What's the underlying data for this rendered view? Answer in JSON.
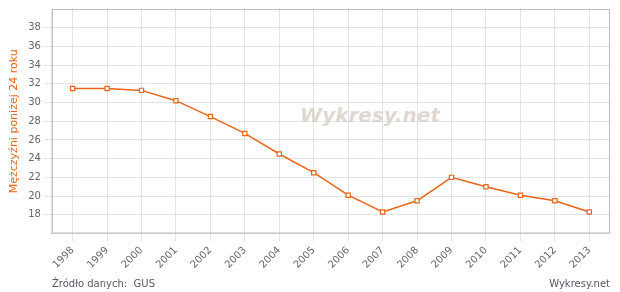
{
  "chart_data": {
    "type": "line",
    "y_label": "Mężczyźni poniżej 24 roku",
    "x": [
      1998,
      1999,
      2000,
      2001,
      2002,
      2003,
      2004,
      2005,
      2006,
      2007,
      2008,
      2009,
      2010,
      2011,
      2012,
      2013
    ],
    "values": [
      31.5,
      31.5,
      31.3,
      30.2,
      28.5,
      26.7,
      24.5,
      22.5,
      20.1,
      18.3,
      19.5,
      22.0,
      21.0,
      20.1,
      19.5,
      18.3
    ],
    "color": "#e8651a",
    "marker": "square",
    "xlim": [
      1997.4,
      2013.6
    ],
    "xticks": [
      1998,
      1999,
      2000,
      2001,
      2002,
      2003,
      2004,
      2005,
      2006,
      2007,
      2008,
      2009,
      2010,
      2011,
      2012,
      2013
    ],
    "ylim": [
      16,
      40
    ],
    "yticks": [
      18,
      20,
      22,
      24,
      26,
      28,
      30,
      32,
      34,
      36,
      38
    ],
    "grid": true,
    "annotations": [
      "Wykresy.net",
      "Źródło danych:  GUS",
      "Wykresy.net"
    ]
  }
}
